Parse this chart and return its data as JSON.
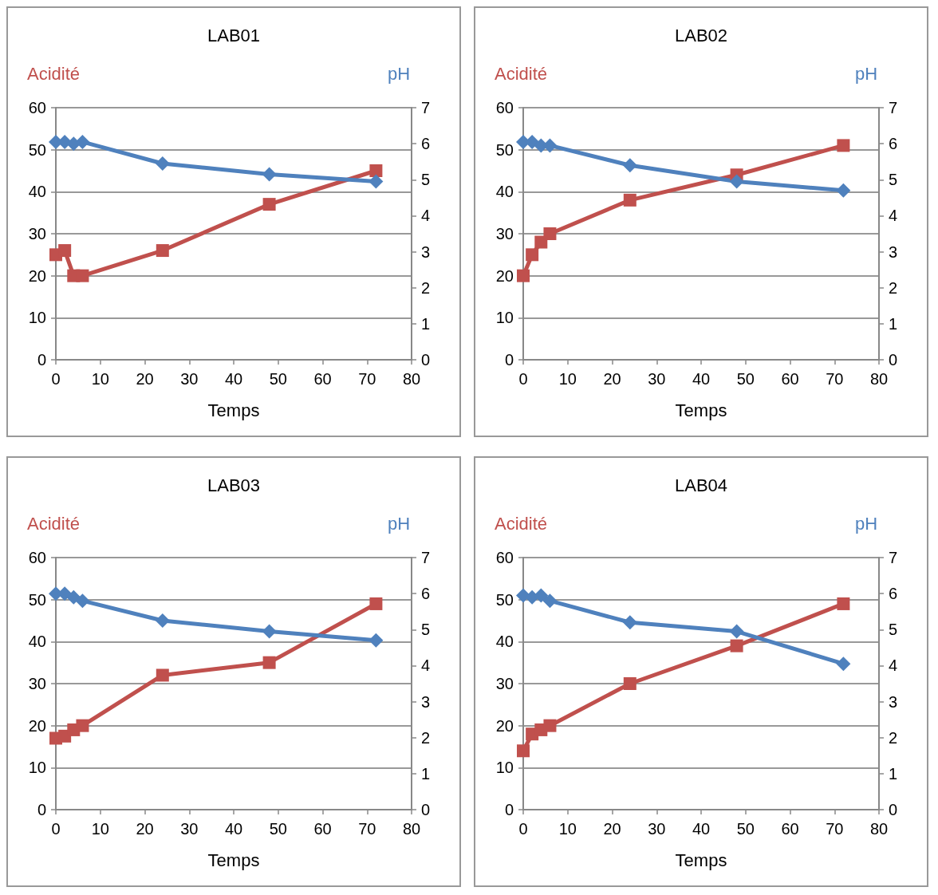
{
  "chart_data": [
    {
      "type": "line",
      "title": "LAB01",
      "xlabel": "Temps",
      "ylabel": "Acidité",
      "y2label": "pH",
      "xlim": [
        0,
        80
      ],
      "xticks": [
        0,
        10,
        20,
        30,
        40,
        50,
        60,
        70,
        80
      ],
      "ylim": [
        0,
        60
      ],
      "yticks": [
        0,
        10,
        20,
        30,
        40,
        50,
        60
      ],
      "y2lim": [
        0,
        7
      ],
      "y2ticks": [
        0,
        1,
        2,
        3,
        4,
        5,
        6,
        7
      ],
      "grid": "y",
      "line_style": "solid",
      "series": [
        {
          "color": "#c0504d",
          "marker": "square",
          "x": [
            0,
            2,
            4,
            6,
            24,
            48,
            72
          ],
          "values": [
            25,
            26,
            20,
            20,
            26,
            37,
            45
          ]
        },
        {
          "color": "#4f81bd",
          "marker": "diamond",
          "axis": "y2",
          "x": [
            0,
            2,
            4,
            6,
            24,
            48,
            72
          ],
          "values": [
            6.05,
            6.05,
            6.0,
            6.05,
            5.45,
            5.15,
            4.95
          ]
        }
      ]
    },
    {
      "type": "line",
      "title": "LAB02",
      "xlabel": "Temps",
      "ylabel": "Acidité",
      "y2label": "pH",
      "xlim": [
        0,
        80
      ],
      "xticks": [
        0,
        10,
        20,
        30,
        40,
        50,
        60,
        70,
        80
      ],
      "ylim": [
        0,
        60
      ],
      "yticks": [
        0,
        10,
        20,
        30,
        40,
        50,
        60
      ],
      "y2lim": [
        0,
        7
      ],
      "y2ticks": [
        0,
        1,
        2,
        3,
        4,
        5,
        6,
        7
      ],
      "grid": "y",
      "line_style": "solid",
      "series": [
        {
          "color": "#c0504d",
          "marker": "square",
          "x": [
            0,
            2,
            4,
            6,
            24,
            48,
            72
          ],
          "values": [
            20,
            25,
            28,
            30,
            38,
            44,
            51
          ]
        },
        {
          "color": "#4f81bd",
          "marker": "diamond",
          "axis": "y2",
          "x": [
            0,
            2,
            4,
            6,
            24,
            48,
            72
          ],
          "values": [
            6.05,
            6.05,
            5.95,
            5.95,
            5.4,
            4.95,
            4.7
          ]
        }
      ]
    },
    {
      "type": "line",
      "title": "LAB03",
      "xlabel": "Temps",
      "ylabel": "Acidité",
      "y2label": "pH",
      "xlim": [
        0,
        80
      ],
      "xticks": [
        0,
        10,
        20,
        30,
        40,
        50,
        60,
        70,
        80
      ],
      "ylim": [
        0,
        60
      ],
      "yticks": [
        0,
        10,
        20,
        30,
        40,
        50,
        60
      ],
      "y2lim": [
        0,
        7
      ],
      "y2ticks": [
        0,
        1,
        2,
        3,
        4,
        5,
        6,
        7
      ],
      "grid": "y",
      "line_style": "solid",
      "series": [
        {
          "color": "#c0504d",
          "marker": "square",
          "x": [
            0,
            2,
            4,
            6,
            24,
            48,
            72
          ],
          "values": [
            17,
            17.5,
            19,
            20,
            32,
            35,
            49
          ]
        },
        {
          "color": "#4f81bd",
          "marker": "diamond",
          "axis": "y2",
          "x": [
            0,
            2,
            4,
            6,
            24,
            48,
            72
          ],
          "values": [
            6.0,
            6.0,
            5.9,
            5.8,
            5.25,
            4.95,
            4.7
          ]
        }
      ]
    },
    {
      "type": "line",
      "title": "LAB04",
      "xlabel": "Temps",
      "ylabel": "Acidité",
      "y2label": "pH",
      "xlim": [
        0,
        80
      ],
      "xticks": [
        0,
        10,
        20,
        30,
        40,
        50,
        60,
        70,
        80
      ],
      "ylim": [
        0,
        60
      ],
      "yticks": [
        0,
        10,
        20,
        30,
        40,
        50,
        60
      ],
      "y2lim": [
        0,
        7
      ],
      "y2ticks": [
        0,
        1,
        2,
        3,
        4,
        5,
        6,
        7
      ],
      "grid": "y",
      "line_style": "solid",
      "series": [
        {
          "color": "#c0504d",
          "marker": "square",
          "x": [
            0,
            2,
            4,
            6,
            24,
            48,
            72
          ],
          "values": [
            14,
            18,
            19,
            20,
            30,
            39,
            49
          ]
        },
        {
          "color": "#4f81bd",
          "marker": "diamond",
          "axis": "y2",
          "x": [
            0,
            2,
            4,
            6,
            24,
            48,
            72
          ],
          "values": [
            5.95,
            5.9,
            5.95,
            5.8,
            5.2,
            4.95,
            4.05
          ]
        }
      ]
    }
  ]
}
